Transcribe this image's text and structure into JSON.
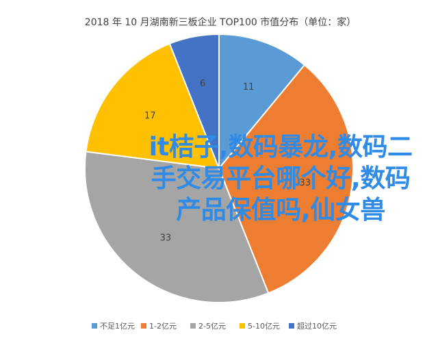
{
  "chart_data": {
    "type": "pie",
    "title": "2018 年 10 月湖南新三板企业 TOP100 市值分布（单位：家）",
    "categories": [
      "不足1亿元",
      "1-2亿元",
      "2-5亿元",
      "5-10亿元",
      "超过10亿元"
    ],
    "values": [
      11,
      33,
      33,
      17,
      6
    ],
    "colors": [
      "#5b9bd5",
      "#ed7d31",
      "#a5a5a5",
      "#ffc000",
      "#4472c4"
    ],
    "legend_position": "bottom"
  },
  "overlay": {
    "text": "it桔子,数码暴龙,数码二手交易平台哪个好,数码产品保值吗,仙女兽"
  }
}
